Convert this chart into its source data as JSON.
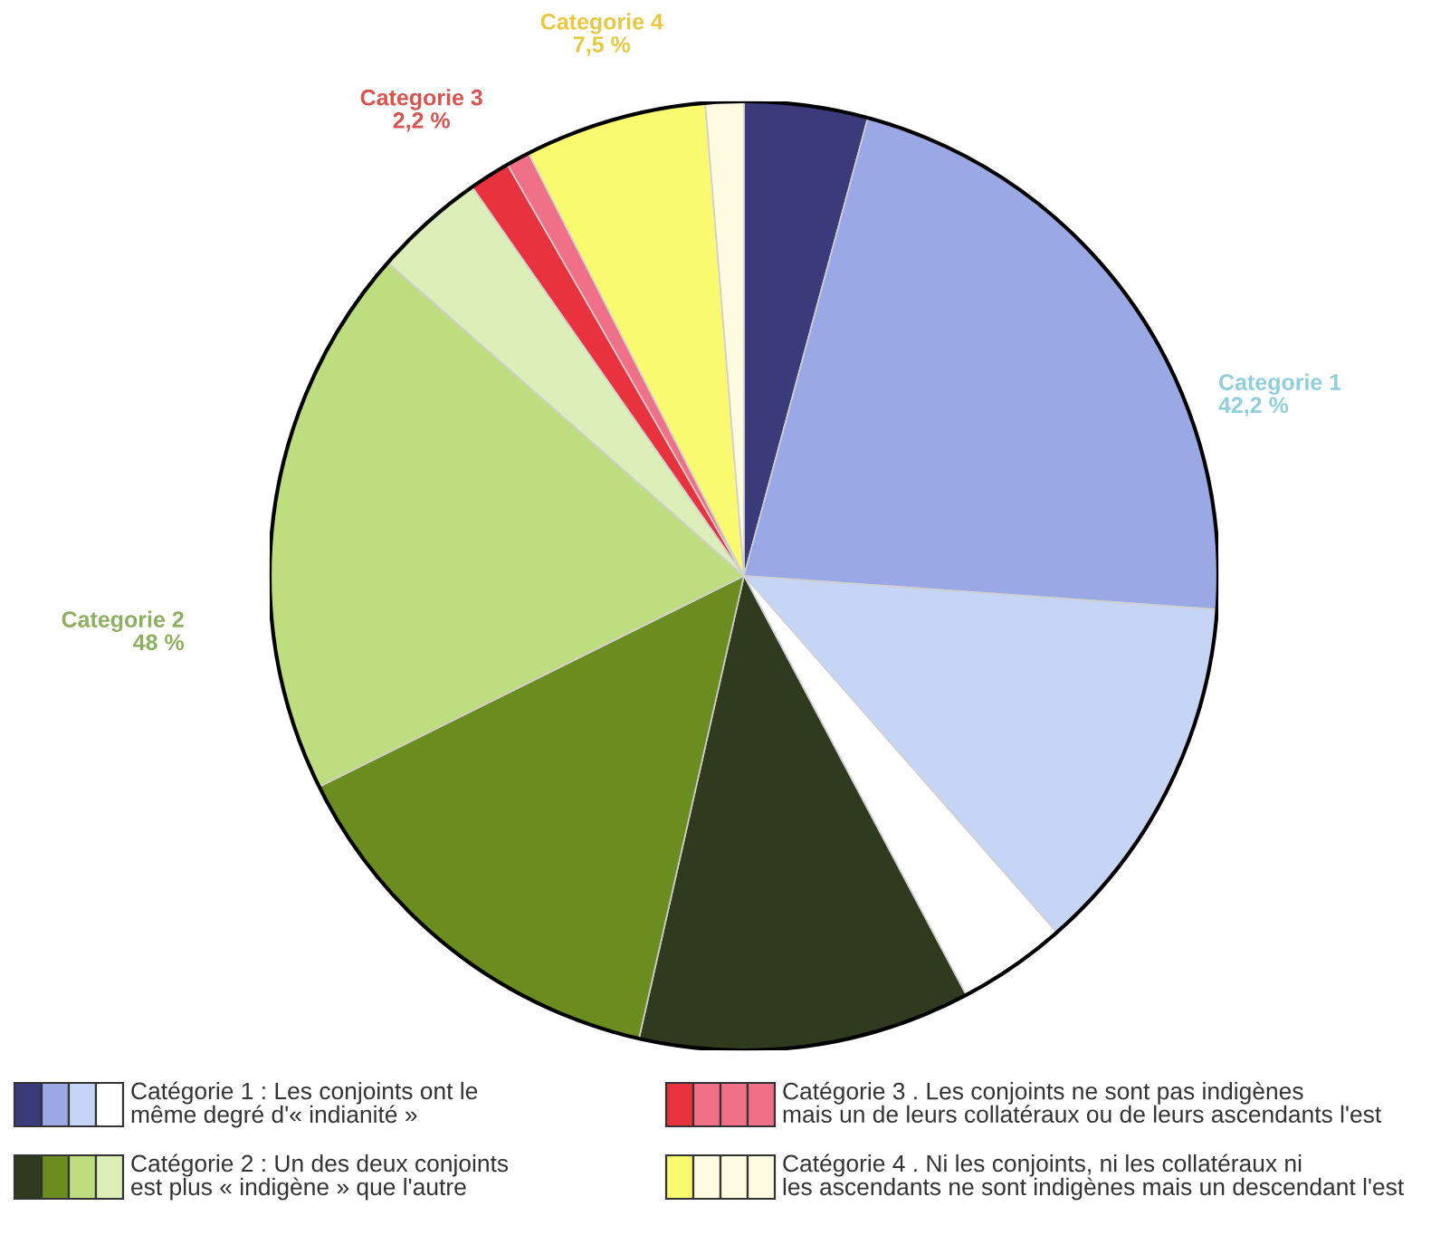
{
  "chart_data": {
    "type": "pie",
    "categories": [
      null,
      null,
      null,
      null,
      null,
      null,
      null,
      null,
      null,
      null,
      null,
      null
    ],
    "values": [
      4.2,
      21.9,
      12.4,
      3.7,
      11.3,
      14.1,
      18.8,
      3.8,
      1.4,
      0.8,
      6.2,
      1.3
    ],
    "colors": [
      "#3b3a7a",
      "#9aa8e6",
      "#c6d4f6",
      "#ffffff",
      "#2f3a1e",
      "#6b8c1e",
      "#bedd7e",
      "#dcefb8",
      "#e8323e",
      "#f07088",
      "#fafa70",
      "#fffbe0"
    ],
    "annotations": [
      "Categorie 1\n42,2 %",
      "Categorie 2\n48 %",
      "Categorie 3\n2,2 %",
      "Categorie 4\n7,5 %",
      "Catégorie 1 : Les conjoints ont le\nmême degré d'« indianité »",
      "Catégorie 2 : Un des deux conjoints\nest plus « indigène » que l'autre",
      "Catégorie 3 . Les conjoints ne sont pas indigènes\nmais un de leurs collatéraux ou de leurs ascendants l'est",
      "Catégorie 4 . Ni les conjoints, ni les collatéraux ni\nles ascendants ne sont indigènes mais un descendant l'est"
    ]
  }
}
